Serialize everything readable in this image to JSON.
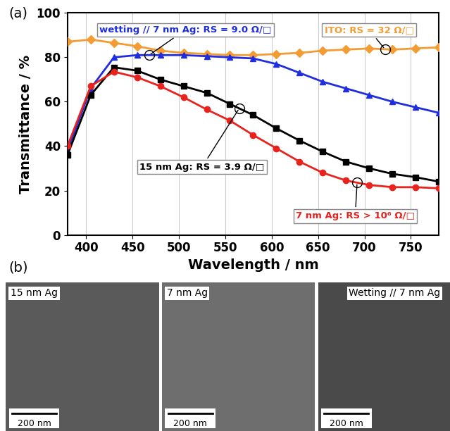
{
  "chart_data": {
    "type": "line",
    "xlabel": "Wavelength / nm",
    "ylabel": "Transmittance / %",
    "xlim": [
      380,
      780
    ],
    "xticks": [
      400,
      450,
      500,
      550,
      600,
      650,
      700,
      750
    ],
    "ylim": [
      0,
      100
    ],
    "yticks": [
      0,
      20,
      40,
      60,
      80,
      100
    ],
    "grid": true,
    "x": [
      380,
      405,
      430,
      455,
      480,
      505,
      530,
      555,
      580,
      605,
      630,
      655,
      680,
      705,
      730,
      755,
      780
    ],
    "series": [
      {
        "name": "ITO: RS = 32 Ω/□",
        "color": "#f39c34",
        "marker": "diamond",
        "values": [
          87,
          88,
          86.5,
          85,
          83,
          82,
          81.5,
          81,
          81,
          81.5,
          82,
          83,
          83.5,
          84,
          83.5,
          84,
          84.5
        ]
      },
      {
        "name": "wetting // 7 nm Ag: RS = 9.0 Ω/□",
        "color": "#1f2de0",
        "marker": "triangle",
        "values": [
          38,
          66,
          80,
          81,
          81,
          81,
          80.5,
          80,
          79.5,
          77,
          73,
          69,
          66,
          63,
          60,
          57.5,
          55
        ]
      },
      {
        "name": "15 nm Ag: RS = 3.9 Ω/□",
        "color": "#000000",
        "marker": "square",
        "values": [
          36,
          63,
          75.5,
          74,
          70,
          67,
          64,
          59,
          54,
          48,
          42.5,
          37.5,
          33,
          30,
          27.5,
          26,
          24
        ]
      },
      {
        "name": "7 nm Ag: RS > 10⁶ Ω/□",
        "color": "#e8221c",
        "marker": "circle",
        "values": [
          40,
          67,
          73.5,
          71,
          67,
          62,
          56.5,
          51.5,
          45,
          39,
          33,
          28,
          24.5,
          22.5,
          21.5,
          21.5,
          21
        ]
      }
    ]
  },
  "panel_labels": [
    "(a)",
    "(b)"
  ],
  "images": [
    {
      "label": "15 nm Ag",
      "scale_bar": "200 nm"
    },
    {
      "label": "7 nm Ag",
      "scale_bar": "200 nm"
    },
    {
      "label": "Wetting // 7 nm Ag",
      "scale_bar": "200 nm"
    }
  ]
}
